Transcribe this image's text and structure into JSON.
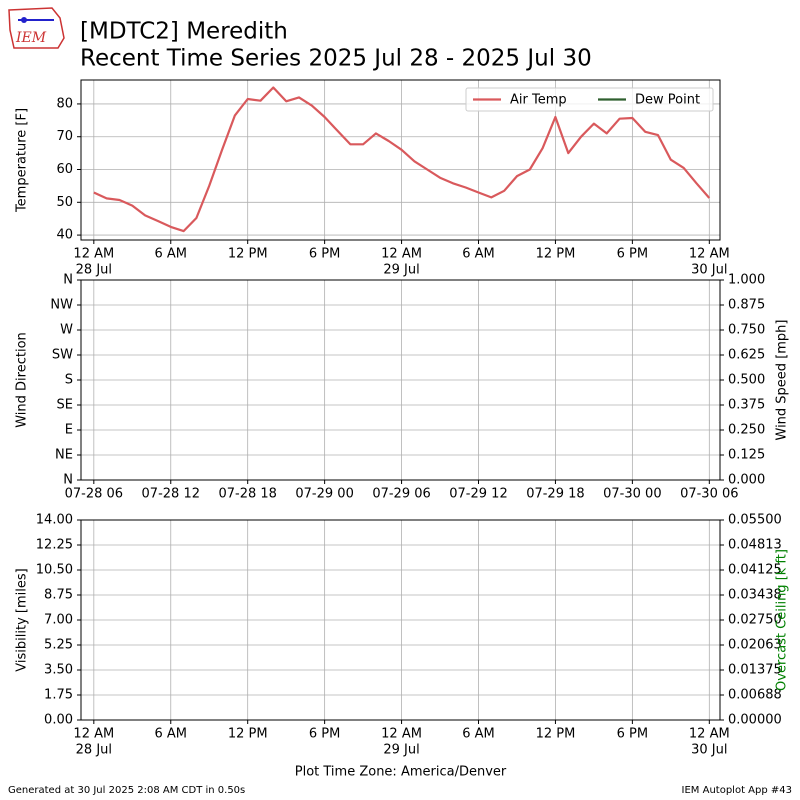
{
  "title": [
    "[MDTC2] Meredith",
    "Recent Time Series 2025 Jul 28 - 2025 Jul 30"
  ],
  "footer": {
    "left": "Generated at 30 Jul 2025 2:08 AM CDT in 0.50s",
    "right": "IEM Autoplot App #43"
  },
  "chart_data": [
    {
      "type": "line",
      "ylabel": "Temperature [F]",
      "grid": true,
      "legend": "upper right",
      "xlim": [
        "2025-07-27 23:00",
        "2025-07-30 00:50"
      ],
      "ylim": [
        38.5,
        87.3
      ],
      "yticks": [
        40,
        50,
        60,
        70,
        80
      ],
      "xticks": [
        {
          "value": "2025-07-28 00:00",
          "label": [
            "12 AM",
            "28 Jul"
          ]
        },
        {
          "value": "2025-07-28 06:00",
          "label": "6 AM"
        },
        {
          "value": "2025-07-28 12:00",
          "label": "12 PM"
        },
        {
          "value": "2025-07-28 18:00",
          "label": "6 PM"
        },
        {
          "value": "2025-07-29 00:00",
          "label": [
            "12 AM",
            "29 Jul"
          ]
        },
        {
          "value": "2025-07-29 06:00",
          "label": "6 AM"
        },
        {
          "value": "2025-07-29 12:00",
          "label": "12 PM"
        },
        {
          "value": "2025-07-29 18:00",
          "label": "6 PM"
        },
        {
          "value": "2025-07-30 00:00",
          "label": [
            "12 AM",
            "30 Jul"
          ]
        }
      ],
      "x": [
        "2025-07-28 00:00",
        "2025-07-28 01:00",
        "2025-07-28 02:00",
        "2025-07-28 03:00",
        "2025-07-28 04:00",
        "2025-07-28 05:00",
        "2025-07-28 06:00",
        "2025-07-28 07:00",
        "2025-07-28 08:00",
        "2025-07-28 09:00",
        "2025-07-28 10:00",
        "2025-07-28 11:00",
        "2025-07-28 12:00",
        "2025-07-28 13:00",
        "2025-07-28 14:00",
        "2025-07-28 15:00",
        "2025-07-28 16:00",
        "2025-07-28 17:00",
        "2025-07-28 18:00",
        "2025-07-28 19:00",
        "2025-07-28 20:00",
        "2025-07-28 21:00",
        "2025-07-28 22:00",
        "2025-07-28 23:00",
        "2025-07-29 00:00",
        "2025-07-29 01:00",
        "2025-07-29 02:00",
        "2025-07-29 03:00",
        "2025-07-29 04:00",
        "2025-07-29 05:00",
        "2025-07-29 06:00",
        "2025-07-29 07:00",
        "2025-07-29 08:00",
        "2025-07-29 09:00",
        "2025-07-29 10:00",
        "2025-07-29 11:00",
        "2025-07-29 12:00",
        "2025-07-29 13:00",
        "2025-07-29 14:00",
        "2025-07-29 15:00",
        "2025-07-29 16:00",
        "2025-07-29 17:00",
        "2025-07-29 18:00",
        "2025-07-29 19:00",
        "2025-07-29 20:00",
        "2025-07-29 21:00",
        "2025-07-29 22:00",
        "2025-07-29 23:00",
        "2025-07-30 00:00"
      ],
      "series": [
        {
          "name": "Air Temp",
          "color": "#d9595c",
          "values": [
            53,
            51.2,
            50.7,
            49,
            46,
            44.3,
            42.5,
            41.2,
            45.2,
            55,
            66,
            76.5,
            81.5,
            81,
            85,
            80.8,
            82,
            79.5,
            76,
            71.8,
            67.7,
            67.7,
            71,
            68.7,
            66,
            62.5,
            60,
            57.5,
            55.8,
            54.5,
            53,
            51.5,
            53.5,
            58,
            60,
            66.5,
            76,
            65,
            70,
            74,
            71,
            75.5,
            75.7,
            71.5,
            70.5,
            63,
            60.5,
            55.8,
            51.3
          ]
        },
        {
          "name": "Dew Point",
          "color": "#2f5f2f",
          "values": [
            null,
            null,
            null,
            null,
            null,
            null,
            null,
            null,
            null,
            null,
            null,
            null,
            null,
            null,
            null,
            null,
            null,
            null,
            null,
            null,
            null,
            null,
            null,
            null,
            null,
            null,
            null,
            null,
            null,
            null,
            null,
            null,
            null,
            null,
            null,
            null,
            null,
            null,
            null,
            null,
            null,
            null,
            null,
            null,
            null,
            null,
            null,
            null,
            null
          ]
        }
      ]
    },
    {
      "type": "line",
      "ylabel": "Wind Direction",
      "y2label": "Wind Speed [mph]",
      "grid": true,
      "xlim": [
        "2025-07-28 05:00",
        "2025-07-30 06:50"
      ],
      "ylim": [
        0,
        360
      ],
      "y2lim": [
        0,
        1
      ],
      "yticks": [
        {
          "value": 0,
          "label": "N"
        },
        {
          "value": 45,
          "label": "NE"
        },
        {
          "value": 90,
          "label": "E"
        },
        {
          "value": 135,
          "label": "SE"
        },
        {
          "value": 180,
          "label": "S"
        },
        {
          "value": 225,
          "label": "SW"
        },
        {
          "value": 270,
          "label": "W"
        },
        {
          "value": 315,
          "label": "NW"
        },
        {
          "value": 360,
          "label": "N"
        }
      ],
      "y2ticks": [
        {
          "value": 0,
          "label": "0.000"
        },
        0.125,
        {
          "value": 0.25,
          "label": "0.250"
        },
        0.375,
        {
          "value": 0.5,
          "label": "0.500"
        },
        0.625,
        {
          "value": 0.75,
          "label": "0.750"
        },
        0.875,
        {
          "value": 1,
          "label": "1.000"
        }
      ],
      "xticks": [
        {
          "value": "2025-07-28 06:00",
          "label": "07-28 06"
        },
        {
          "value": "2025-07-28 12:00",
          "label": "07-28 12"
        },
        {
          "value": "2025-07-28 18:00",
          "label": "07-28 18"
        },
        {
          "value": "2025-07-29 00:00",
          "label": "07-29 00"
        },
        {
          "value": "2025-07-29 06:00",
          "label": "07-29 06"
        },
        {
          "value": "2025-07-29 12:00",
          "label": "07-29 12"
        },
        {
          "value": "2025-07-29 18:00",
          "label": "07-29 18"
        },
        {
          "value": "2025-07-30 00:00",
          "label": "07-30 00"
        },
        {
          "value": "2025-07-30 06:00",
          "label": "07-30 06"
        }
      ]
    },
    {
      "type": "line",
      "ylabel": "Visibility [miles]",
      "y2label": "Overcast Ceiling [k ft]",
      "y2label_color": "#008000",
      "xlabel": "Plot Time Zone: America/Denver",
      "grid": true,
      "xlim": [
        "2025-07-27 23:00",
        "2025-07-30 00:50"
      ],
      "ylim": [
        0,
        14
      ],
      "y2lim": [
        0,
        0.055
      ],
      "yticks": [
        {
          "value": 0,
          "label": "0.00"
        },
        1.75,
        {
          "value": 3.5,
          "label": "3.50"
        },
        5.25,
        {
          "value": 7,
          "label": "7.00"
        },
        8.75,
        {
          "value": 10.5,
          "label": "10.50"
        },
        12.25,
        {
          "value": 14,
          "label": "14.00"
        }
      ],
      "y2ticks": [
        {
          "value": 0,
          "label": "0.00000"
        },
        {
          "value": 0.006875,
          "label": "0.00688"
        },
        0.01375,
        {
          "value": 0.020625,
          "label": "0.02063"
        },
        {
          "value": 0.0275,
          "label": "0.02750"
        },
        {
          "value": 0.034375,
          "label": "0.03438"
        },
        0.04125,
        {
          "value": 0.048125,
          "label": "0.04813"
        },
        {
          "value": 0.055,
          "label": "0.05500"
        }
      ],
      "xticks": [
        {
          "value": "2025-07-28 00:00",
          "label": [
            "12 AM",
            "28 Jul"
          ]
        },
        {
          "value": "2025-07-28 06:00",
          "label": "6 AM"
        },
        {
          "value": "2025-07-28 12:00",
          "label": "12 PM"
        },
        {
          "value": "2025-07-28 18:00",
          "label": "6 PM"
        },
        {
          "value": "2025-07-29 00:00",
          "label": [
            "12 AM",
            "29 Jul"
          ]
        },
        {
          "value": "2025-07-29 06:00",
          "label": "6 AM"
        },
        {
          "value": "2025-07-29 12:00",
          "label": "12 PM"
        },
        {
          "value": "2025-07-29 18:00",
          "label": "6 PM"
        },
        {
          "value": "2025-07-30 00:00",
          "label": [
            "12 AM",
            "30 Jul"
          ]
        }
      ]
    }
  ]
}
